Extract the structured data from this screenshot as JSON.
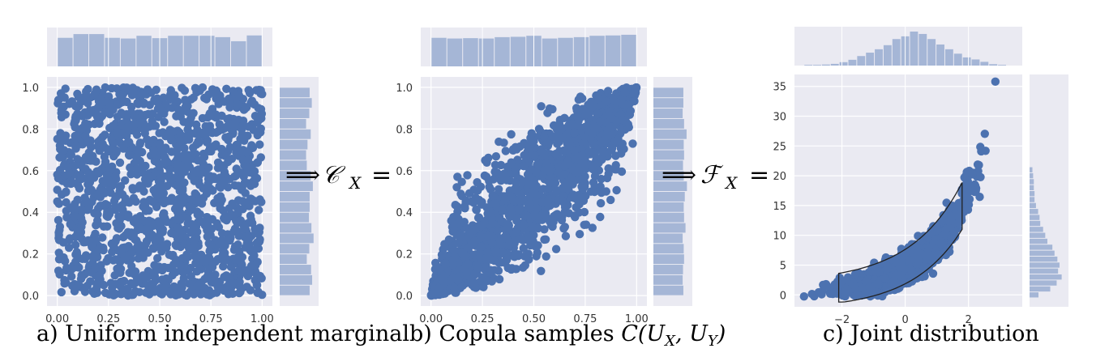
{
  "colors": {
    "panel_bg": "#eaeaf2",
    "grid": "#ffffff",
    "point": "#4c72b0",
    "hist": "#a5b6d6",
    "curve": "#222222"
  },
  "captions": {
    "a": "a) Uniform independent marginal",
    "b_prefix": "b) Copula samples ",
    "c": "c) Joint distribution"
  },
  "formulas": {
    "arrow": "⟹",
    "copula_symbol": "𝒞",
    "joint_symbol": "ℱ",
    "subscript": "X",
    "equals": "=",
    "copula_expr": "C(U",
    "copula_expr_sub1": "X",
    "copula_expr_mid": ", U",
    "copula_expr_sub2": "Y",
    "copula_expr_end": ")"
  },
  "chart_data": [
    {
      "type": "scatter",
      "title": "a) Uniform independent marginal",
      "xlim": [
        -0.05,
        1.05
      ],
      "ylim": [
        -0.05,
        1.05
      ],
      "xticks": [
        "0.00",
        "0.25",
        "0.50",
        "0.75",
        "1.00"
      ],
      "xtick_values": [
        0,
        0.25,
        0.5,
        0.75,
        1.0
      ],
      "yticks": [
        "0.0",
        "0.2",
        "0.4",
        "0.6",
        "0.8",
        "1.0"
      ],
      "ytick_values": [
        0,
        0.2,
        0.4,
        0.6,
        0.8,
        1.0
      ],
      "n_points": 1500,
      "distribution": "independent uniform U(0,1) × U(0,1)",
      "marginal_x_hist": [
        0.84,
        0.95,
        0.95,
        0.84,
        0.82,
        0.9,
        0.83,
        0.9,
        0.9,
        0.9,
        0.86,
        0.74,
        0.91
      ],
      "marginal_y_hist": [
        0.84,
        0.91,
        0.88,
        0.76,
        0.83,
        0.95,
        0.89,
        0.82,
        0.84,
        0.84,
        0.93,
        0.87,
        0.76,
        0.74,
        0.78,
        0.87,
        0.74,
        0.83,
        0.9,
        0.84
      ],
      "grid": true
    },
    {
      "type": "scatter",
      "title": "b) Copula samples C(U_X, U_Y)",
      "xlim": [
        -0.05,
        1.05
      ],
      "ylim": [
        -0.05,
        1.05
      ],
      "xticks": [
        "0.00",
        "0.25",
        "0.50",
        "0.75",
        "1.00"
      ],
      "xtick_values": [
        0,
        0.25,
        0.5,
        0.75,
        1.0
      ],
      "yticks": [
        "0.0",
        "0.2",
        "0.4",
        "0.6",
        "0.8",
        "1.0"
      ],
      "ytick_values": [
        0,
        0.2,
        0.4,
        0.6,
        0.8,
        1.0
      ],
      "n_points": 1500,
      "distribution": "positively dependent copula, correlation ~0.9",
      "correlation": 0.9,
      "marginal_x_hist": [
        0.84,
        0.82,
        0.83,
        0.82,
        0.86,
        0.87,
        0.9,
        0.82,
        0.84,
        0.86,
        0.9,
        0.91,
        0.93
      ],
      "marginal_y_hist": [
        0.84,
        0.82,
        0.83,
        0.86,
        0.85,
        0.82,
        0.9,
        0.86,
        0.85,
        0.88,
        0.94,
        0.85,
        0.83,
        0.86,
        0.85,
        0.93,
        0.86,
        0.82,
        0.84,
        0.84
      ],
      "grid": true
    },
    {
      "type": "scatter",
      "title": "c) Joint distribution",
      "xlim": [
        -3.5,
        3.7
      ],
      "ylim": [
        -2,
        37
      ],
      "xticks": [
        "−2",
        "0",
        "2"
      ],
      "xtick_values": [
        -2,
        0,
        2
      ],
      "yticks": [
        "0",
        "5",
        "10",
        "15",
        "20",
        "25",
        "30",
        "35"
      ],
      "ytick_values": [
        0,
        5,
        10,
        15,
        20,
        25,
        30,
        35
      ],
      "n_points": 1500,
      "distribution": "X ~ N(0,1), Y ≈ 5·exp(0.6·X) with noise",
      "outlier": [
        2.85,
        35.8
      ],
      "contour": true,
      "marginal_x_hist": [
        0.02,
        0.02,
        0.03,
        0.05,
        0.1,
        0.17,
        0.28,
        0.38,
        0.48,
        0.6,
        0.78,
        0.86,
        1.0,
        0.93,
        0.78,
        0.62,
        0.48,
        0.35,
        0.24,
        0.18,
        0.11,
        0.04,
        0.02
      ],
      "marginal_y_hist": [
        0.25,
        0.58,
        0.76,
        0.9,
        0.8,
        0.84,
        0.78,
        0.7,
        0.64,
        0.5,
        0.44,
        0.38,
        0.3,
        0.28,
        0.24,
        0.18,
        0.14,
        0.14,
        0.12,
        0.12,
        0.1,
        0.08
      ],
      "grid": true
    }
  ]
}
